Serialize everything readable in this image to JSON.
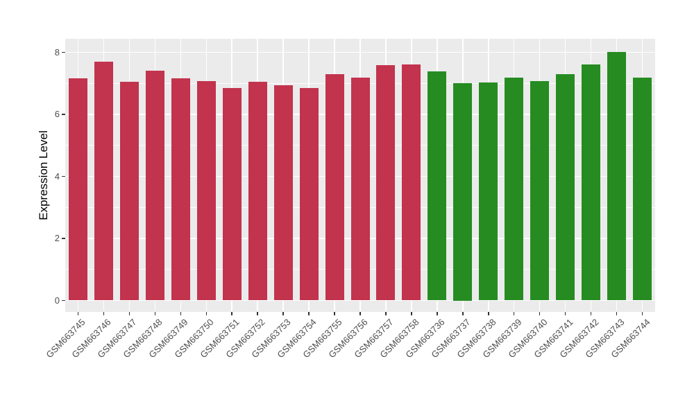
{
  "figure": {
    "background": "#FFFFFF"
  },
  "chart_data": {
    "type": "bar",
    "title": "",
    "xlabel": "",
    "ylabel": "Expression Level",
    "categories": [
      "GSM663745",
      "GSM663746",
      "GSM663747",
      "GSM663748",
      "GSM663749",
      "GSM663750",
      "GSM663751",
      "GSM663752",
      "GSM663753",
      "GSM663754",
      "GSM663755",
      "GSM663756",
      "GSM663757",
      "GSM663758",
      "GSM663736",
      "GSM663737",
      "GSM663738",
      "GSM663739",
      "GSM663740",
      "GSM663741",
      "GSM663742",
      "GSM663743",
      "GSM663744"
    ],
    "values": [
      7.17,
      7.7,
      7.06,
      7.4,
      7.16,
      7.07,
      6.86,
      7.05,
      6.94,
      6.85,
      7.29,
      7.18,
      7.58,
      7.61,
      7.39,
      7.0,
      7.02,
      7.19,
      7.07,
      7.29,
      7.6,
      8.02,
      7.19
    ],
    "bar_group_index": [
      0,
      0,
      0,
      0,
      0,
      0,
      0,
      0,
      0,
      0,
      0,
      0,
      0,
      0,
      1,
      1,
      1,
      1,
      1,
      1,
      1,
      1,
      1
    ],
    "group_colors": [
      "#C2334D",
      "#268C21"
    ],
    "ylim": [
      0,
      8.45
    ],
    "yticks": [
      0,
      2,
      4,
      6,
      8
    ],
    "yticks_minor": [
      1,
      3,
      5,
      7
    ],
    "legend_position": "none",
    "grid": true,
    "panel_background": "#EBEBEB",
    "grid_color": "#FFFFFF",
    "axis_text_color": "#4D4D4D",
    "axis_title_color": "#000000"
  }
}
